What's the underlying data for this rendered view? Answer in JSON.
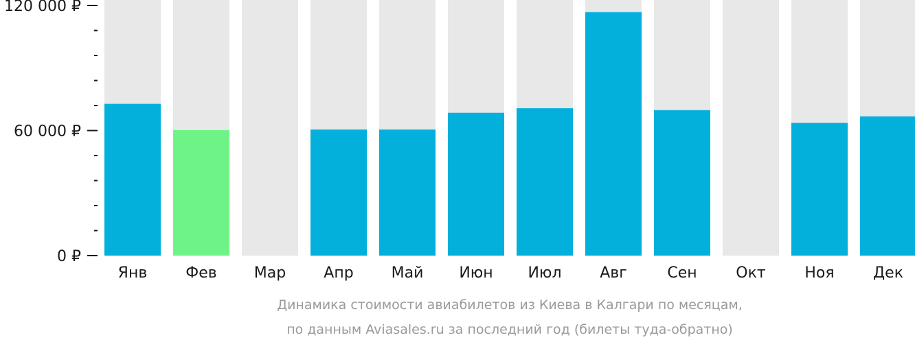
{
  "chart_data": {
    "type": "bar",
    "categories": [
      "Янв",
      "Фев",
      "Мар",
      "Апр",
      "Май",
      "Июн",
      "Июл",
      "Авг",
      "Сен",
      "Окт",
      "Ноя",
      "Дек"
    ],
    "values": [
      72800,
      60200,
      null,
      60500,
      60500,
      68500,
      70700,
      116800,
      69800,
      null,
      63700,
      66800
    ],
    "highlight_index": 1,
    "ylim": [
      0,
      120000
    ],
    "y_ticks": [
      {
        "value": 0,
        "label": "0 ₽"
      },
      {
        "value": 60000,
        "label": "60 000 ₽"
      },
      {
        "value": 120000,
        "label": "120 000 ₽"
      }
    ],
    "minor_tick_step": 12000,
    "caption_lines": [
      "Динамика стоимости авиабилетов из Киева в Калгари по месяцам,",
      "по данным Aviasales.ru за последний год (билеты туда-обратно)"
    ],
    "colors": {
      "bar": "#03b0dc",
      "highlight": "#6ef486",
      "background_bar": "#e8e8e8",
      "axis": "#1a1a1a",
      "caption": "#9a9a9a"
    }
  }
}
